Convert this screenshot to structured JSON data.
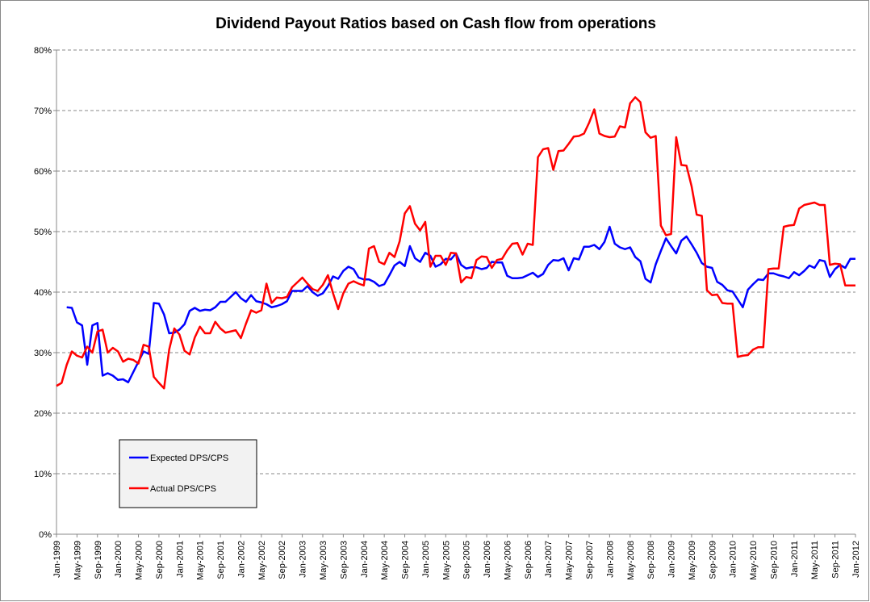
{
  "chart_data": {
    "type": "line",
    "title": "Dividend Payout Ratios based on Cash flow from operations",
    "categories": [
      "Jan-1999",
      null,
      null,
      null,
      "May-1999",
      null,
      null,
      null,
      "Sep-1999",
      null,
      null,
      null,
      "Jan-2000",
      null,
      null,
      null,
      "May-2000",
      null,
      null,
      null,
      "Sep-2000",
      null,
      null,
      null,
      "Jan-2001",
      null,
      null,
      null,
      "May-2001",
      null,
      null,
      null,
      "Sep-2001",
      null,
      null,
      null,
      "Jan-2002",
      null,
      null,
      null,
      "May-2002",
      null,
      null,
      null,
      "Sep-2002",
      null,
      null,
      null,
      "Jan-2003",
      null,
      null,
      null,
      "May-2003",
      null,
      null,
      null,
      "Sep-2003",
      null,
      null,
      null,
      "Jan-2004",
      null,
      null,
      null,
      "May-2004",
      null,
      null,
      null,
      "Sep-2004",
      null,
      null,
      null,
      "Jan-2005",
      null,
      null,
      null,
      "May-2005",
      null,
      null,
      null,
      "Sep-2005",
      null,
      null,
      null,
      "Jan-2006",
      null,
      null,
      null,
      "May-2006",
      null,
      null,
      null,
      "Sep-2006",
      null,
      null,
      null,
      "Jan-2007",
      null,
      null,
      null,
      "May-2007",
      null,
      null,
      null,
      "Sep-2007",
      null,
      null,
      null,
      "Jan-2008",
      null,
      null,
      null,
      "May-2008",
      null,
      null,
      null,
      "Sep-2008",
      null,
      null,
      null,
      "Jan-2009",
      null,
      null,
      null,
      "May-2009",
      null,
      null,
      null,
      "Sep-2009",
      null,
      null,
      null,
      "Jan-2010",
      null,
      null,
      null,
      "May-2010",
      null,
      null,
      null,
      "Sep-2010",
      null,
      null,
      null,
      "Jan-2011",
      null,
      null,
      null,
      "May-2011",
      null,
      null,
      null,
      "Sep-2011",
      null,
      null,
      null,
      "Jan-2012"
    ],
    "series": [
      {
        "name": "Expected DPS/CPS",
        "color": "#0000ff",
        "values": [
          null,
          null,
          37.5,
          37.4,
          35,
          34.5,
          28,
          34.5,
          34.9,
          26.2,
          26.6,
          26.2,
          25.5,
          25.6,
          25.1,
          26.8,
          28.5,
          30.2,
          29.8,
          38.2,
          38.1,
          36.3,
          33.2,
          33.3,
          33.8,
          34.7,
          36.9,
          37.4,
          36.9,
          37.1,
          37,
          37.5,
          38.4,
          38.4,
          39.2,
          40,
          39,
          38.4,
          39.5,
          38.5,
          38.3,
          38,
          37.5,
          37.7,
          38,
          38.5,
          40.2,
          40.2,
          40.2,
          41,
          40,
          39.4,
          39.8,
          41,
          42.6,
          42.2,
          43.5,
          44.2,
          43.8,
          42.4,
          42.1,
          42.1,
          41.7,
          41,
          41.3,
          42.8,
          44.4,
          45,
          44.3,
          47.6,
          45.6,
          45,
          46.5,
          46,
          44.2,
          44.6,
          45.5,
          45.4,
          46.4,
          44.5,
          43.9,
          44.1,
          44.1,
          43.8,
          44,
          45,
          44.9,
          44.9,
          42.7,
          42.3,
          42.3,
          42.4,
          42.8,
          43.2,
          42.5,
          43,
          44.5,
          45.3,
          45.2,
          45.6,
          43.6,
          45.6,
          45.4,
          47.5,
          47.5,
          47.8,
          47.1,
          48.3,
          50.8,
          48,
          47.4,
          47.1,
          47.4,
          45.8,
          45.1,
          42.2,
          41.6,
          44.6,
          46.8,
          48.9,
          47.6,
          46.4,
          48.5,
          49.2,
          47.9,
          46.5,
          44.8,
          44.2,
          44,
          41.7,
          41.2,
          40.3,
          40.1,
          38.8,
          37.5,
          40.4,
          41.3,
          42.1,
          42,
          43.1,
          43.1,
          42.8,
          42.6,
          42.3,
          43.3,
          42.8,
          43.5,
          44.4,
          44,
          45.3,
          45.1,
          42.5,
          43.8,
          44.5,
          44,
          45.5,
          45.5
        ]
      },
      {
        "name": "Actual DPS/CPS",
        "color": "#ff0000",
        "values": [
          24.5,
          25,
          28,
          30.2,
          29.5,
          29.2,
          31,
          30,
          33.5,
          33.8,
          30,
          30.8,
          30.2,
          28.5,
          29,
          28.8,
          28.2,
          31.3,
          31,
          26,
          25,
          24.1,
          30.5,
          34,
          33,
          30.3,
          29.7,
          32.5,
          34.3,
          33.2,
          33.2,
          35.1,
          34,
          33.3,
          33.5,
          33.7,
          32.4,
          34.8,
          37,
          36.6,
          37,
          41.4,
          38.2,
          39.1,
          39,
          39.2,
          40.8,
          41.6,
          42.4,
          41.4,
          40.5,
          40.2,
          41.2,
          42.8,
          39.8,
          37.2,
          39.8,
          41.4,
          41.8,
          41.4,
          41.1,
          47.2,
          47.6,
          45,
          44.6,
          46.5,
          45.8,
          48.4,
          53,
          54.2,
          51.3,
          50.2,
          51.6,
          44.2,
          46,
          46,
          44.5,
          46.5,
          46.4,
          41.6,
          42.5,
          42.3,
          45.3,
          45.9,
          45.8,
          44,
          45.3,
          45.5,
          46.9,
          48,
          48.1,
          46.2,
          48,
          47.8,
          62.3,
          63.6,
          63.8,
          60.2,
          63.3,
          63.4,
          64.5,
          65.7,
          65.8,
          66.2,
          68,
          70.2,
          66.2,
          65.8,
          65.6,
          65.7,
          67.4,
          67.2,
          71.2,
          72.2,
          71.4,
          66.4,
          65.5,
          65.8,
          51,
          49.4,
          49.6,
          65.6,
          61,
          60.9,
          57.5,
          52.8,
          52.6,
          40.3,
          39.5,
          39.6,
          38.2,
          38.1,
          38.1,
          29.3,
          29.5,
          29.6,
          30.5,
          30.9,
          30.9,
          43.8,
          43.9,
          43.9,
          50.8,
          51,
          51.1,
          53.8,
          54.4,
          54.6,
          54.8,
          54.4,
          54.4,
          44.5,
          44.7,
          44.6,
          41.1,
          41.1,
          41.1
        ]
      }
    ],
    "ylim": [
      0,
      80
    ],
    "yticks": [
      {
        "value": 0,
        "label": "0%"
      },
      {
        "value": 10,
        "label": "10%"
      },
      {
        "value": 20,
        "label": "20%"
      },
      {
        "value": 30,
        "label": "30%"
      },
      {
        "value": 40,
        "label": "40%"
      },
      {
        "value": 50,
        "label": "50%"
      },
      {
        "value": 60,
        "label": "60%"
      },
      {
        "value": 70,
        "label": "70%"
      },
      {
        "value": 80,
        "label": "80%"
      }
    ],
    "grid": true,
    "legend": "lower left"
  }
}
